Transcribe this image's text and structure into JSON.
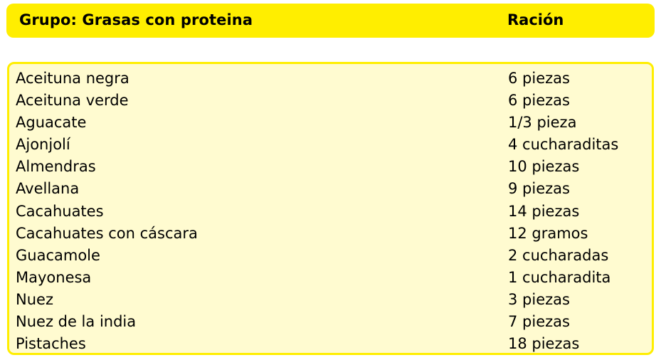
{
  "header": {
    "group_label": "Grupo: Grasas con proteina",
    "ration_label": "Ración"
  },
  "colors": {
    "header_bg": "#ffee00",
    "table_border": "#ffee00",
    "table_bg": "#fffbd0"
  },
  "rows": [
    {
      "food": "Aceituna negra",
      "ration": "6 piezas"
    },
    {
      "food": "Aceituna verde",
      "ration": "6 piezas"
    },
    {
      "food": "Aguacate",
      "ration": "1/3 pieza"
    },
    {
      "food": "Ajonjolí",
      "ration": "4 cucharaditas"
    },
    {
      "food": "Almendras",
      "ration": "10 piezas"
    },
    {
      "food": "Avellana",
      "ration": "9 piezas"
    },
    {
      "food": "Cacahuates",
      "ration": "14 piezas"
    },
    {
      "food": "Cacahuates con cáscara",
      "ration": "12 gramos"
    },
    {
      "food": "Guacamole",
      "ration": "2 cucharadas"
    },
    {
      "food": "Mayonesa",
      "ration": "1 cucharadita"
    },
    {
      "food": "Nuez",
      "ration": "3 piezas"
    },
    {
      "food": "Nuez de la india",
      "ration": "7 piezas"
    },
    {
      "food": "Pistaches",
      "ration": "18 piezas"
    }
  ]
}
